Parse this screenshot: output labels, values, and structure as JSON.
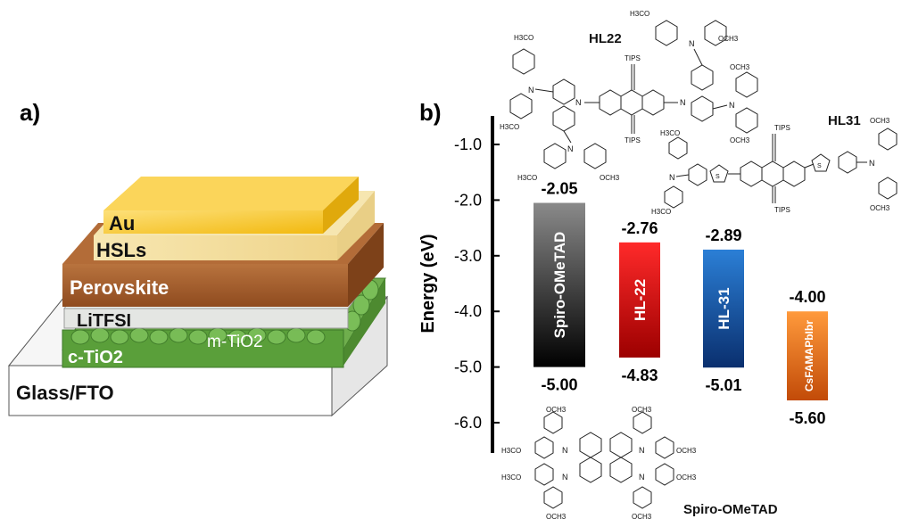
{
  "panel_a": {
    "label": "a)",
    "layers": {
      "au": "Au",
      "hsls": "HSLs",
      "perovskite": "Perovskite",
      "litfsi": "LiTFSI",
      "m_tio2": "m-TiO2",
      "c_tio2": "c-TiO2",
      "glass_fto": "Glass/FTO"
    },
    "colors": {
      "au": "#f5c431",
      "hsls": "#f3dfa0",
      "perovskite": "#a95f2d",
      "litfsi": "#e4e6e3",
      "m_tio2": "#5c9a3e",
      "c_tio2": "#5a9f3a",
      "glass": "#f2f2f2"
    }
  },
  "panel_b": {
    "label": "b)",
    "molecule_labels": {
      "hl22": "HL22",
      "hl31": "HL31",
      "spiro": "Spiro-OMeTAD"
    },
    "structure_text": {
      "ome": "OCH3",
      "h3co": "H3CO",
      "tips": "TIPS",
      "n": "N",
      "s": "S"
    }
  },
  "chart_data": {
    "type": "bar",
    "ylabel": "Energy (eV)",
    "ylim": [
      -6.5,
      -0.5
    ],
    "yticks": [
      -1.0,
      -2.0,
      -3.0,
      -4.0,
      -5.0,
      -6.0
    ],
    "ytick_labels": [
      "-1.0",
      "-2.0",
      "-3.0",
      "-4.0",
      "-5.0",
      "-6.0"
    ],
    "bars": [
      {
        "name": "Spiro-OMeTAD",
        "lumo": -2.05,
        "homo": -5.0,
        "lumo_label": "-2.05",
        "homo_label": "-5.00",
        "color_top": "#8a8a8a",
        "color_bottom": "#000000"
      },
      {
        "name": "HL-22",
        "lumo": -2.76,
        "homo": -4.83,
        "lumo_label": "-2.76",
        "homo_label": "-4.83",
        "color_top": "#ff2a2a",
        "color_bottom": "#9c0000"
      },
      {
        "name": "HL-31",
        "lumo": -2.89,
        "homo": -5.01,
        "lumo_label": "-2.89",
        "homo_label": "-5.01",
        "color_top": "#2b7fd6",
        "color_bottom": "#0a2f6e"
      },
      {
        "name": "CsFAMAPbIbr",
        "lumo": -4.0,
        "homo": -5.6,
        "lumo_label": "-4.00",
        "homo_label": "-5.60",
        "color_top": "#ff9a3c",
        "color_bottom": "#c24b08"
      }
    ]
  }
}
